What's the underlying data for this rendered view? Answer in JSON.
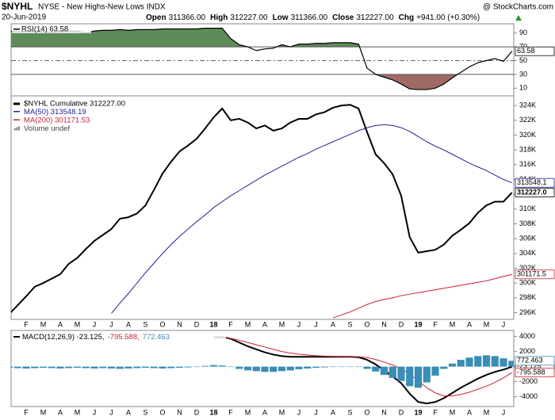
{
  "header": {
    "title": "$NYHL",
    "subtitle": "NYSE - New Highs-New Lows INDX",
    "brand": "@ StockCharts.com",
    "date": "20-Jun-2019",
    "quote": [
      {
        "label": "Open",
        "value": "311366.00"
      },
      {
        "label": "High",
        "value": "312227.00"
      },
      {
        "label": "Low",
        "value": "311366.00"
      },
      {
        "label": "Close",
        "value": "312227.00"
      },
      {
        "label": "Chg",
        "value": "+941.00 (+0.30%)"
      }
    ]
  },
  "chart_data": [
    {
      "type": "line",
      "indicator": "rsi",
      "ylim": [
        0,
        100
      ],
      "yticks": [
        90,
        70,
        50,
        30,
        10
      ],
      "overbought": 70,
      "oversold": 30,
      "overbought_color": "#5f8a5a",
      "oversold_color": "#a06a66",
      "series": [
        {
          "name": "RSI(14) 63.58",
          "color": "#000000",
          "last_label": "63.58",
          "values": [
            93,
            92,
            93,
            92,
            92,
            91,
            92,
            93,
            93,
            90,
            93,
            94,
            94,
            95,
            94,
            95,
            95,
            95,
            96,
            96,
            96,
            96,
            96,
            97,
            97,
            97,
            82,
            73,
            70,
            64.5,
            67,
            68,
            73,
            70,
            74,
            74,
            75,
            75,
            76,
            76,
            76,
            74,
            39,
            30,
            26,
            22,
            16,
            9,
            8,
            8,
            10,
            16,
            25,
            33,
            41,
            47,
            50,
            53,
            49,
            63.58
          ]
        }
      ]
    },
    {
      "type": "line",
      "categories": [
        null,
        null,
        "F",
        null,
        "M",
        null,
        "A",
        null,
        "M",
        null,
        "J",
        null,
        "J",
        null,
        "A",
        null,
        "S",
        null,
        "O",
        null,
        "N",
        null,
        "D",
        null,
        "18",
        null,
        "F",
        null,
        "M",
        null,
        "A",
        null,
        "M",
        null,
        "J",
        null,
        "J",
        null,
        "A",
        null,
        "S",
        null,
        "O",
        null,
        "N",
        null,
        "D",
        null,
        "19",
        null,
        "F",
        null,
        "M",
        null,
        "A",
        null,
        "M",
        null,
        "J",
        null
      ],
      "ylim": [
        295200,
        325300
      ],
      "yticks": [
        {
          "value": 296000,
          "label": "296K"
        },
        {
          "value": 298000,
          "label": "298K"
        },
        {
          "value": 300000,
          "label": "300K"
        },
        {
          "value": 302000,
          "label": "302K"
        },
        {
          "value": 304000,
          "label": "304K"
        },
        {
          "value": 306000,
          "label": "306K"
        },
        {
          "value": 308000,
          "label": "308K"
        },
        {
          "value": 310000,
          "label": "310K"
        },
        {
          "value": 312000,
          "label": "312K"
        },
        {
          "value": 314000,
          "label": "314K"
        },
        {
          "value": 316000,
          "label": "316K"
        },
        {
          "value": 318000,
          "label": "318K"
        },
        {
          "value": 320000,
          "label": "320K"
        },
        {
          "value": 322000,
          "label": "322K"
        },
        {
          "value": 324000,
          "label": "324K"
        }
      ],
      "legend_extra": "Volume undef",
      "series": [
        {
          "name": "$NYHL Cumulative 312227.00",
          "color": "#000000",
          "width": 2,
          "last_label": "312227.0",
          "values": [
            295800,
            297000,
            298200,
            299500,
            300000,
            300600,
            301200,
            302600,
            303400,
            304600,
            305700,
            306500,
            307300,
            308700,
            308900,
            309400,
            310500,
            312600,
            314800,
            316400,
            317800,
            318600,
            319500,
            320900,
            322400,
            323600,
            322000,
            322200,
            321700,
            320900,
            321300,
            320600,
            320900,
            321700,
            322200,
            322200,
            322800,
            323100,
            323700,
            324000,
            324100,
            323600,
            320400,
            317400,
            316200,
            314700,
            311800,
            306200,
            304100,
            304300,
            304500,
            305200,
            306400,
            307200,
            308100,
            309500,
            310500,
            311000,
            311000,
            312227
          ]
        },
        {
          "name": "MA(50) 313548.19",
          "color": "#22229a",
          "width": 1,
          "last_label": "313548.1",
          "values": [
            null,
            null,
            null,
            null,
            null,
            null,
            null,
            null,
            null,
            null,
            null,
            null,
            295900,
            297300,
            298600,
            300000,
            301400,
            302700,
            304000,
            305200,
            306300,
            307300,
            308300,
            309200,
            310200,
            311000,
            311800,
            312500,
            313200,
            313900,
            314600,
            315200,
            315800,
            316400,
            317000,
            317500,
            318100,
            318600,
            319100,
            319600,
            320100,
            320600,
            321000,
            321300,
            321400,
            321300,
            321000,
            320500,
            319800,
            319100,
            318500,
            318000,
            317400,
            316800,
            316200,
            315700,
            315200,
            314600,
            314000,
            313548.19
          ]
        },
        {
          "name": "MA(200) 301171.53",
          "color": "#c8203c",
          "width": 1,
          "last_label": "301171.5",
          "values": [
            null,
            null,
            null,
            null,
            null,
            null,
            null,
            null,
            null,
            null,
            null,
            null,
            null,
            null,
            null,
            null,
            null,
            null,
            null,
            null,
            null,
            null,
            null,
            null,
            null,
            null,
            null,
            null,
            null,
            null,
            null,
            null,
            null,
            null,
            null,
            null,
            null,
            null,
            295300,
            295700,
            296100,
            296600,
            297100,
            297500,
            297800,
            298000,
            298300,
            298500,
            298700,
            298900,
            299100,
            299300,
            299500,
            299700,
            299900,
            300100,
            300300,
            300600,
            300900,
            301171.53
          ]
        }
      ]
    },
    {
      "type": "line",
      "categories": [
        null,
        null,
        "F",
        null,
        "M",
        null,
        "A",
        null,
        "M",
        null,
        "J",
        null,
        "J",
        null,
        "A",
        null,
        "S",
        null,
        "O",
        null,
        "N",
        null,
        "D",
        null,
        "18",
        null,
        "F",
        null,
        "M",
        null,
        "A",
        null,
        "M",
        null,
        "J",
        null,
        "J",
        null,
        "A",
        null,
        "S",
        null,
        "O",
        null,
        "N",
        null,
        "D",
        null,
        "19",
        null,
        "F",
        null,
        "M",
        null,
        "A",
        null,
        "M",
        null,
        "J",
        null
      ],
      "ylim": [
        -5200,
        4700
      ],
      "yticks": [
        4000,
        2000,
        0,
        -2000,
        -4000
      ],
      "series": [
        {
          "name": "MACD(12,26,9) -23.125,",
          "color": "#000000",
          "width": 2,
          "last_label": "-23.125",
          "values": [
            null,
            null,
            null,
            null,
            null,
            null,
            null,
            null,
            null,
            null,
            null,
            null,
            null,
            null,
            null,
            null,
            null,
            null,
            null,
            null,
            null,
            null,
            null,
            null,
            3900,
            3950,
            3700,
            3200,
            2700,
            2300,
            1900,
            1600,
            1400,
            1300,
            1300,
            1300,
            1300,
            1300,
            1300,
            1300,
            1300,
            1250,
            900,
            300,
            -500,
            -1300,
            -2200,
            -3600,
            -4700,
            -4900,
            -4700,
            -4200,
            -3500,
            -2800,
            -2200,
            -1600,
            -1100,
            -700,
            -400,
            -23.125
          ]
        },
        {
          "name": "-795.588,",
          "color": "#d0202c",
          "width": 1,
          "last_label": "-795.588",
          "values": [
            null,
            null,
            null,
            null,
            null,
            null,
            null,
            null,
            null,
            null,
            null,
            null,
            null,
            null,
            null,
            null,
            null,
            null,
            null,
            null,
            null,
            null,
            null,
            null,
            3700,
            3800,
            3750,
            3500,
            3200,
            2900,
            2600,
            2300,
            2000,
            1800,
            1650,
            1550,
            1450,
            1400,
            1350,
            1330,
            1320,
            1300,
            1200,
            950,
            600,
            200,
            -300,
            -1000,
            -1900,
            -2800,
            -3500,
            -3900,
            -3900,
            -3700,
            -3400,
            -3000,
            -2600,
            -2100,
            -1500,
            -795.588
          ]
        },
        {
          "name": "772.463",
          "type": "bar",
          "color": "#3a8db5",
          "last_label": "772.463",
          "values": [
            -150,
            -200,
            -250,
            -200,
            -150,
            -200,
            -250,
            -200,
            -150,
            -200,
            -250,
            -200,
            -250,
            -300,
            -250,
            -200,
            -150,
            -200,
            -250,
            -200,
            -150,
            -100,
            -50,
            100,
            200,
            150,
            -50,
            -300,
            -500,
            -600,
            -700,
            -700,
            -600,
            -500,
            -350,
            -250,
            -150,
            -100,
            -50,
            -30,
            -20,
            -50,
            -300,
            -650,
            -1100,
            -1500,
            -1900,
            -2600,
            -2800,
            -2100,
            -1200,
            -300,
            400,
            900,
            1200,
            1400,
            1500,
            1400,
            1100,
            772.463
          ]
        }
      ]
    }
  ]
}
